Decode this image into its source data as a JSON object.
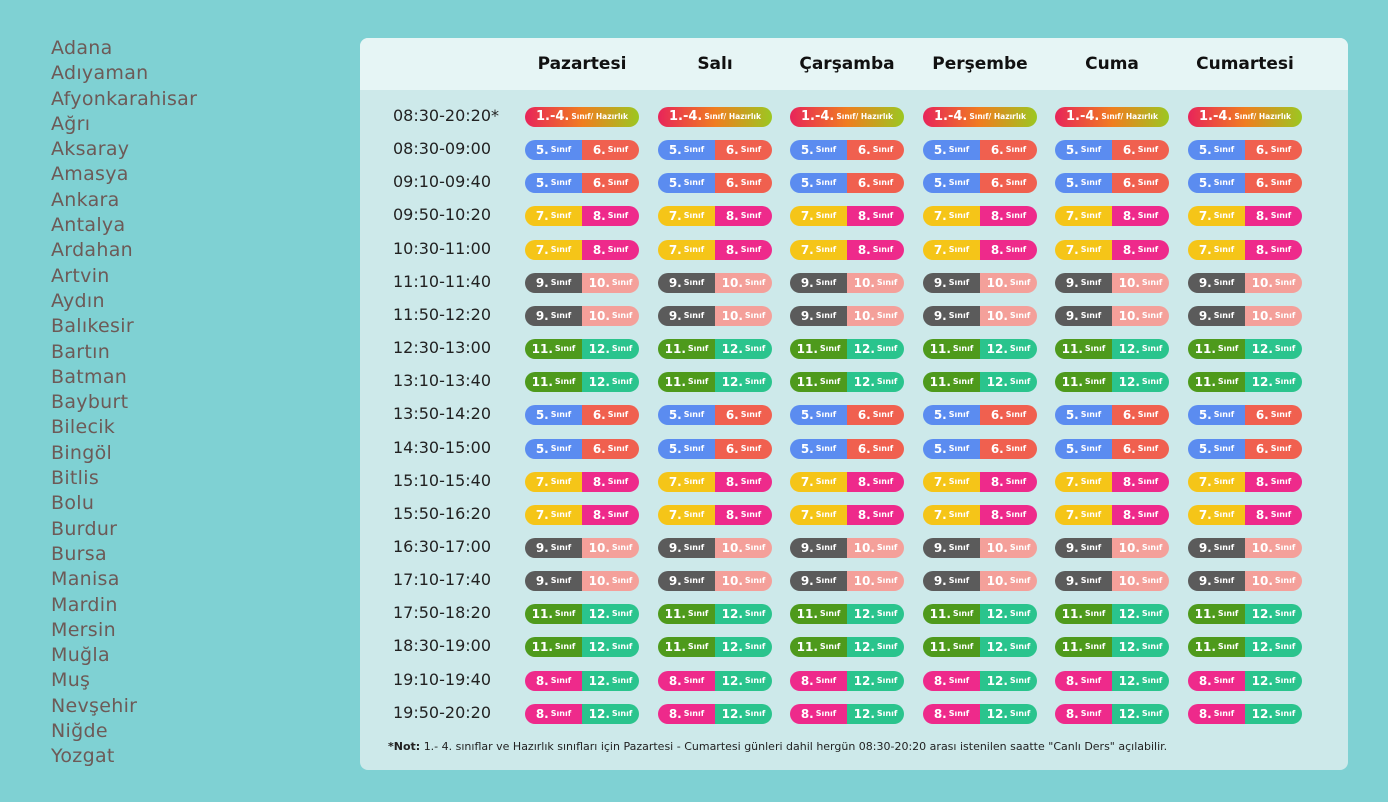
{
  "cities": [
    "Adana",
    "Adıyaman",
    "Afyonkarahisar",
    "Ağrı",
    "Aksaray",
    "Amasya",
    "Ankara",
    "Antalya",
    "Ardahan",
    "Artvin",
    "Aydın",
    "Balıkesir",
    "Bartın",
    "Batman",
    "Bayburt",
    "Bilecik",
    "Bingöl",
    "Bitlis",
    "Bolu",
    "Burdur",
    "Bursa",
    "Manisa",
    "Mardin",
    "Mersin",
    "Muğla",
    "Muş",
    "Nevşehir",
    "Niğde",
    "Yozgat"
  ],
  "days": [
    "Pazartesi",
    "Salı",
    "Çarşamba",
    "Perşembe",
    "Cuma",
    "Cumartesi"
  ],
  "groups": {
    "prim": {
      "type": "full",
      "num": "1.-4.",
      "word": "Sınıf/ Hazırlık",
      "colors": [
        "#e8245a",
        "#f07d20",
        "#9cc721"
      ]
    },
    "56": {
      "type": "pair",
      "a": {
        "num": "5.",
        "word": "Sınıf",
        "color": "#5b8cf0"
      },
      "b": {
        "num": "6.",
        "word": "Sınıf",
        "color": "#f0604f"
      }
    },
    "78": {
      "type": "pair",
      "a": {
        "num": "7.",
        "word": "Sınıf",
        "color": "#f5c518"
      },
      "b": {
        "num": "8.",
        "word": "Sınıf",
        "color": "#ee2a8b"
      }
    },
    "910": {
      "type": "pair",
      "a": {
        "num": "9.",
        "word": "Sınıf",
        "color": "#5b5b5b"
      },
      "b": {
        "num": "10.",
        "word": "Sınıf",
        "color": "#f4a09a"
      }
    },
    "1112": {
      "type": "pair",
      "a": {
        "num": "11.",
        "word": "Sınıf",
        "color": "#4e9a1c"
      },
      "b": {
        "num": "12.",
        "word": "Sınıf",
        "color": "#2ac48d"
      }
    },
    "812": {
      "type": "pair",
      "a": {
        "num": "8.",
        "word": "Sınıf",
        "color": "#ee2a8b"
      },
      "b": {
        "num": "12.",
        "word": "Sınıf",
        "color": "#2ac48d"
      }
    }
  },
  "rows": [
    {
      "time": "08:30-20:20*",
      "group": "prim"
    },
    {
      "time": "08:30-09:00",
      "group": "56"
    },
    {
      "time": "09:10-09:40",
      "group": "56"
    },
    {
      "time": "09:50-10:20",
      "group": "78"
    },
    {
      "time": "10:30-11:00",
      "group": "78"
    },
    {
      "time": "11:10-11:40",
      "group": "910"
    },
    {
      "time": "11:50-12:20",
      "group": "910"
    },
    {
      "time": "12:30-13:00",
      "group": "1112"
    },
    {
      "time": "13:10-13:40",
      "group": "1112"
    },
    {
      "time": "13:50-14:20",
      "group": "56"
    },
    {
      "time": "14:30-15:00",
      "group": "56"
    },
    {
      "time": "15:10-15:40",
      "group": "78"
    },
    {
      "time": "15:50-16:20",
      "group": "78"
    },
    {
      "time": "16:30-17:00",
      "group": "910"
    },
    {
      "time": "17:10-17:40",
      "group": "910"
    },
    {
      "time": "17:50-18:20",
      "group": "1112"
    },
    {
      "time": "18:30-19:00",
      "group": "1112"
    },
    {
      "time": "19:10-19:40",
      "group": "812"
    },
    {
      "time": "19:50-20:20",
      "group": "812"
    }
  ],
  "note": {
    "label": "*Not:",
    "text": "1.- 4. sınıflar ve Hazırlık sınıfları için Pazartesi - Cumartesi günleri dahil hergün 08:30-20:20 arası istenilen saatte \"Canlı Ders\" açılabilir."
  }
}
